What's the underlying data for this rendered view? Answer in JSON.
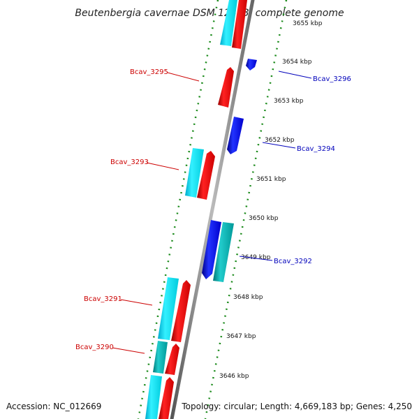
{
  "title": "Beutenbergia cavernae DSM 12333, complete genome",
  "footer": {
    "accession": "Accession: NC_012669",
    "topology": "Topology: circular; Length: 4,669,183 bp; Genes: 4,250"
  },
  "ticks": [
    "3655 kbp",
    "3654 kbp",
    "3653 kbp",
    "3652 kbp",
    "3651 kbp",
    "3650 kbp",
    "3649 kbp",
    "3648 kbp",
    "3647 kbp",
    "3646 kbp"
  ],
  "gene_labels": [
    {
      "name": "Bcav_3296",
      "strand": "reverse"
    },
    {
      "name": "Bcav_3295",
      "strand": "forward"
    },
    {
      "name": "Bcav_3294",
      "strand": "reverse"
    },
    {
      "name": "Bcav_3293",
      "strand": "forward"
    },
    {
      "name": "Bcav_3292",
      "strand": "reverse"
    },
    {
      "name": "Bcav_3291",
      "strand": "forward"
    },
    {
      "name": "Bcav_3290",
      "strand": "forward"
    }
  ],
  "colors": {
    "forward_cds": "#ff0000",
    "reverse_cds": "#0000ee",
    "forward_gene": "#00e5ff",
    "reverse_gene": "#00b3b3",
    "backbone": "#888888",
    "tick_marks": "#1a8a1a",
    "forward_label": "#cc0000",
    "reverse_label": "#0000bb"
  }
}
